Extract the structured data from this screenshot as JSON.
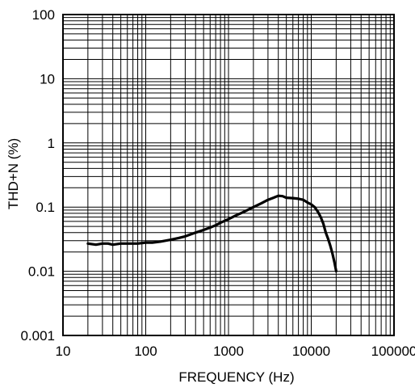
{
  "chart_data": {
    "type": "line",
    "xlabel": "FREQUENCY (Hz)",
    "ylabel": "THD+N (%)",
    "x_scale": "log",
    "y_scale": "log",
    "xlim": [
      10,
      100000
    ],
    "ylim": [
      0.001,
      100
    ],
    "grid": true,
    "x_ticks": [
      "10",
      "100",
      "1000",
      "10000",
      "100000"
    ],
    "y_ticks": [
      "0.001",
      "0.01",
      "0.1",
      "1",
      "10",
      "100"
    ],
    "series": [
      {
        "x": [
          20,
          25,
          30,
          35,
          40,
          50,
          60,
          70,
          80,
          100,
          120,
          150,
          200,
          250,
          300,
          400,
          500,
          600,
          700,
          800,
          1000,
          1200,
          1500,
          2000,
          2500,
          3000,
          3500,
          4000,
          4500,
          5000,
          6000,
          7000,
          8000,
          9000,
          10000,
          11000,
          12000,
          13000,
          14000,
          15000,
          16000,
          17000,
          18000,
          19000,
          20000
        ],
        "y": [
          0.027,
          0.026,
          0.027,
          0.027,
          0.026,
          0.027,
          0.027,
          0.027,
          0.027,
          0.028,
          0.028,
          0.029,
          0.031,
          0.033,
          0.035,
          0.04,
          0.044,
          0.048,
          0.052,
          0.057,
          0.065,
          0.073,
          0.083,
          0.1,
          0.115,
          0.13,
          0.14,
          0.15,
          0.148,
          0.14,
          0.138,
          0.135,
          0.13,
          0.118,
          0.11,
          0.1,
          0.085,
          0.07,
          0.055,
          0.04,
          0.032,
          0.025,
          0.019,
          0.014,
          0.01
        ]
      }
    ],
    "line_color": "#000000"
  }
}
